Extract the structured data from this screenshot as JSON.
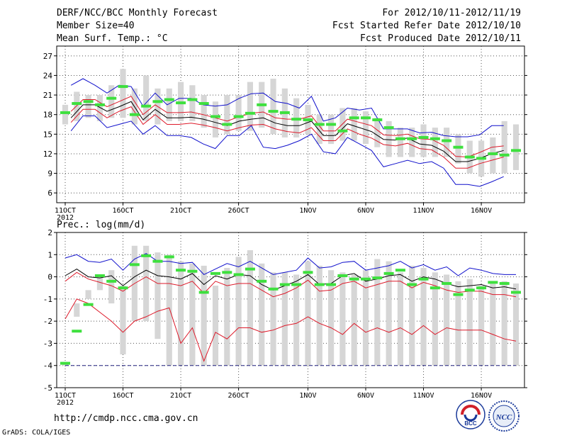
{
  "header": {
    "title": "DERF/NCC/BCC Monthly Forecast",
    "member_size": "Member Size=40",
    "variable1": "Mean Surf. Temp.: °C",
    "period": "For 2012/10/11-2012/11/19",
    "start_date": "Fcst Started Refer Date 2012/10/10",
    "produced_date": "Fcst Produced Date 2012/10/11"
  },
  "variable2": "Prec.: log(mm/d)",
  "footer": {
    "url": "http://cmdp.ncc.cma.gov.cn",
    "credit": "GrADS: COLA/IGES"
  },
  "logos": {
    "bcc": "BCC",
    "ncc": "NCC"
  },
  "colors": {
    "box": "#d6d6d6",
    "observed": "#3ee03e",
    "envelope": "#1010cc",
    "spread": "#dd1a2a",
    "mean": "#000000",
    "dotted_grid": "#555555",
    "min_line": "#202080"
  },
  "chart_data": [
    {
      "type": "box",
      "name": "temperature",
      "ylim": [
        4.5,
        28.5
      ],
      "yticks": [
        6,
        9,
        12,
        15,
        18,
        21,
        24,
        27
      ],
      "x_start": 1,
      "x_end": 40,
      "xticks": [
        {
          "day": 1,
          "label": "11OCT",
          "sublabel": "2012"
        },
        {
          "day": 6,
          "label": "16OCT"
        },
        {
          "day": 11,
          "label": "21OCT"
        },
        {
          "day": 16,
          "label": "26OCT"
        },
        {
          "day": 22,
          "label": "1NOV"
        },
        {
          "day": 27,
          "label": "6NOV"
        },
        {
          "day": 32,
          "label": "11NOV"
        },
        {
          "day": 37,
          "label": "16NOV"
        }
      ],
      "box_low": [
        16.5,
        17,
        17.5,
        17,
        17.5,
        17.5,
        16.5,
        17,
        16.5,
        17,
        17,
        17,
        16,
        14.5,
        15,
        15.5,
        15.5,
        16,
        15,
        14.5,
        14.5,
        15,
        13.5,
        13.5,
        14,
        14,
        13.5,
        13,
        11.5,
        11.5,
        11.5,
        11.5,
        11.5,
        11.5,
        10.5,
        9,
        8.5,
        9,
        9,
        9.5
      ],
      "box_high": [
        19.5,
        21.5,
        21,
        21,
        22.5,
        25,
        22,
        24,
        22,
        22,
        23,
        22.5,
        21,
        20,
        21,
        21,
        23,
        23,
        23.5,
        22,
        20.5,
        19.5,
        18,
        18,
        19,
        19,
        18.5,
        17.5,
        17,
        16,
        16,
        16.5,
        16,
        16,
        15,
        14,
        14,
        14.5,
        17,
        16.5
      ],
      "observed": [
        18.3,
        19.7,
        20,
        19.5,
        20.5,
        22.3,
        18,
        19.3,
        20,
        20.3,
        19.8,
        20.3,
        19.7,
        17.7,
        16.5,
        17.7,
        18.2,
        19.5,
        18.5,
        18.3,
        17.3,
        17.2,
        16.5,
        16.5,
        15.5,
        17.5,
        17.5,
        17.2,
        16,
        14.3,
        14.3,
        14.5,
        14.3,
        14,
        13,
        11.5,
        11.3,
        12,
        11.8,
        12.5
      ],
      "mean": [
        17.5,
        19.5,
        19.5,
        18.5,
        19.2,
        20,
        17.2,
        18.8,
        17.5,
        17.5,
        17.6,
        17.3,
        16.8,
        16.3,
        17,
        17.3,
        17.5,
        16.7,
        16.3,
        16.3,
        17,
        14.8,
        14.8,
        16.6,
        16,
        15.4,
        14.2,
        14.1,
        14.4,
        13.5,
        13.3,
        12.4,
        10.8,
        10.8,
        11.3,
        12,
        12.5
      ],
      "upper_red": [
        18.5,
        20.3,
        20.3,
        19.2,
        20,
        20.8,
        18,
        19.5,
        18.3,
        18.3,
        18.4,
        18,
        17.5,
        17,
        17.7,
        18.2,
        18.4,
        17.5,
        17.3,
        17.3,
        17.8,
        15.5,
        15.5,
        17.3,
        16.8,
        16.3,
        14.9,
        14.8,
        15,
        14.3,
        14.2,
        13.3,
        11.6,
        11.5,
        12.2,
        13,
        13.2
      ],
      "lower_red": [
        16.8,
        18.8,
        18.8,
        17.5,
        18.5,
        19.2,
        16.5,
        18,
        16.5,
        16.5,
        16.7,
        16.4,
        16,
        15.5,
        16,
        16.4,
        16.5,
        15.8,
        15.4,
        15.2,
        16,
        14,
        14,
        15.8,
        15,
        14.4,
        13.4,
        13.2,
        13.6,
        12.8,
        12.6,
        11.5,
        9.8,
        9.8,
        10.5,
        11,
        11.5
      ],
      "upper_blue": [
        22.5,
        23.5,
        22.5,
        21.3,
        22.5,
        22.3,
        19.3,
        21.3,
        19.5,
        20.5,
        20.5,
        19.5,
        19.3,
        19.5,
        20.5,
        21.2,
        21.3,
        20,
        19.7,
        19,
        20.8,
        17,
        17.5,
        19,
        18.7,
        19,
        15.8,
        15.8,
        15.8,
        15.2,
        15.3,
        14.8,
        14.6,
        14.6,
        14.9,
        16.3,
        16.3
      ],
      "lower_blue": [
        15.5,
        17.8,
        17.8,
        16,
        16.5,
        17,
        15,
        16.3,
        14.8,
        14.8,
        14.5,
        13.5,
        12.8,
        14.8,
        14.8,
        16.3,
        13,
        12.8,
        13.3,
        14,
        15,
        12.3,
        12,
        14.5,
        13.5,
        12.5,
        10,
        10.5,
        11,
        10.5,
        10.8,
        9.8,
        7.3,
        7.3,
        7,
        7.7,
        8.5
      ],
      "line_x_start": 1.5,
      "line_x_step": 1.04
    },
    {
      "type": "box",
      "name": "precipitation",
      "ylim": [
        -5,
        2
      ],
      "yticks": [
        -5,
        -4,
        -3,
        -2,
        -1,
        0,
        1,
        2
      ],
      "x_start": 1,
      "x_end": 40,
      "xticks": [
        {
          "day": 1,
          "label": "11OCT",
          "sublabel": "2012"
        },
        {
          "day": 6,
          "label": "16OCT"
        },
        {
          "day": 11,
          "label": "21OCT"
        },
        {
          "day": 16,
          "label": "26OCT"
        },
        {
          "day": 22,
          "label": "1NOV"
        },
        {
          "day": 27,
          "label": "6NOV"
        },
        {
          "day": 32,
          "label": "11NOV"
        },
        {
          "day": 37,
          "label": "16NOV"
        }
      ],
      "box_low": [
        -4,
        -1.8,
        -1,
        -0.6,
        -1.2,
        -3.5,
        -2,
        -2,
        -2.8,
        -4,
        -4,
        -4,
        -4,
        -4,
        -4,
        -4,
        -4,
        -4,
        -4,
        -4,
        -4,
        -4,
        -4,
        -4,
        -4,
        -4,
        -4,
        -4,
        -4,
        -4,
        -4,
        -4,
        -4,
        -4,
        -4,
        -4,
        -4,
        -4,
        -4,
        -4
      ],
      "box_high": [
        -3.9,
        -1.2,
        -0.6,
        0.1,
        0.3,
        -0.4,
        1.4,
        1.4,
        1.1,
        1,
        0.7,
        0.6,
        0.5,
        -0.4,
        0.4,
        0.9,
        1.2,
        0.6,
        0.2,
        0.2,
        0.1,
        0.7,
        0.5,
        0.3,
        0.2,
        0.1,
        0.3,
        0.8,
        0.7,
        0.2,
        0.5,
        0.4,
        0.2,
        0.1,
        -0.2,
        -0.1,
        -0.4,
        -0.3,
        -0.2,
        -0.3
      ],
      "observed": [
        -3.9,
        -2.45,
        -1.25,
        0.05,
        -0.2,
        -0.5,
        0.55,
        0.95,
        0.7,
        0.9,
        0.3,
        0.25,
        -0.7,
        0.15,
        0.2,
        0.1,
        0.35,
        -0.2,
        -0.55,
        -0.35,
        -0.35,
        0.2,
        -0.35,
        -0.35,
        0.05,
        -0.1,
        -0.1,
        -0.05,
        0.15,
        0.3,
        -0.35,
        -0.1,
        -0.5,
        -0.3,
        -0.8,
        -0.6,
        -0.5,
        -0.25,
        -0.3,
        -0.7
      ],
      "mean": [
        0.05,
        0.35,
        0,
        -0.05,
        0.05,
        -0.4,
        0,
        0.3,
        0.05,
        0,
        -0.1,
        0.15,
        -0.35,
        0.05,
        -0.1,
        0.1,
        0.05,
        -0.35,
        -0.6,
        -0.4,
        -0.2,
        0.1,
        -0.35,
        -0.3,
        0.05,
        0.15,
        -0.2,
        -0.1,
        0.05,
        0.1,
        -0.2,
        0,
        -0.1,
        -0.3,
        -0.45,
        -0.4,
        -0.35,
        -0.5,
        -0.45,
        -0.55
      ],
      "upper_red": [
        -0.2,
        0.2,
        -0.1,
        -0.25,
        -0.4,
        -0.65,
        -0.3,
        0,
        -0.3,
        -0.3,
        -0.4,
        -0.2,
        -0.75,
        -0.2,
        -0.4,
        -0.3,
        -0.3,
        -0.6,
        -0.9,
        -0.75,
        -0.5,
        -0.15,
        -0.65,
        -0.6,
        -0.3,
        -0.2,
        -0.5,
        -0.35,
        -0.2,
        -0.2,
        -0.5,
        -0.25,
        -0.4,
        -0.6,
        -0.7,
        -0.65,
        -0.65,
        -0.8,
        -0.8,
        -0.9
      ],
      "lower_red": [
        -1.9,
        -1.0,
        -1.2,
        -1.6,
        -2.0,
        -2.5,
        -2.0,
        -1.8,
        -1.55,
        -1.4,
        -3.0,
        -2.3,
        -3.8,
        -2.5,
        -2.8,
        -2.3,
        -2.3,
        -2.5,
        -2.4,
        -2.2,
        -2.1,
        -1.8,
        -2.1,
        -2.3,
        -2.6,
        -2.1,
        -2.5,
        -2.3,
        -2.5,
        -2.3,
        -2.6,
        -2.2,
        -2.6,
        -2.3,
        -2.4,
        -2.4,
        -2.4,
        -2.6,
        -2.8,
        -2.9
      ],
      "upper_blue": [
        0.85,
        1.0,
        0.7,
        0.65,
        0.8,
        0.3,
        0.8,
        1.05,
        0.7,
        0.7,
        0.6,
        0.65,
        0.1,
        0.35,
        0.6,
        0.45,
        0.7,
        0.4,
        0.1,
        0.2,
        0.3,
        0.85,
        0.4,
        0.45,
        0.65,
        0.7,
        0.3,
        0.4,
        0.5,
        0.7,
        0.4,
        0.55,
        0.3,
        0.45,
        0.05,
        0.4,
        0.3,
        0.15,
        0.1,
        0.1
      ],
      "min_value": -4,
      "line_x_start": 1,
      "line_x_step": 1
    }
  ]
}
